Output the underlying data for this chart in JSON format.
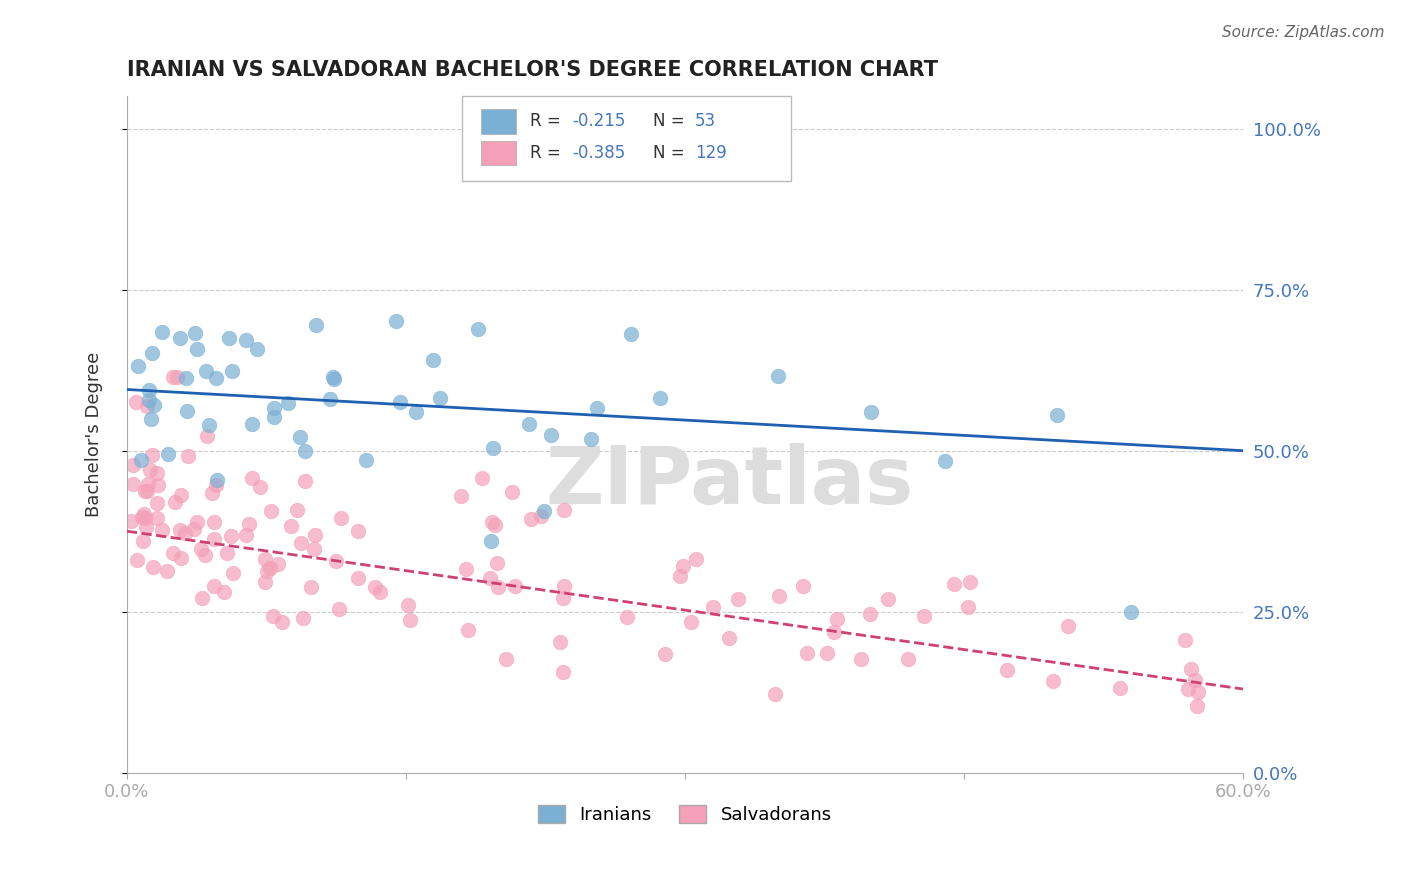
{
  "title": "IRANIAN VS SALVADORAN BACHELOR'S DEGREE CORRELATION CHART",
  "source": "Source: ZipAtlas.com",
  "ylabel_label": "Bachelor's Degree",
  "right_yticks": [
    0.0,
    0.25,
    0.5,
    0.75,
    1.0
  ],
  "right_ytick_labels": [
    "0.0%",
    "25.0%",
    "50.0%",
    "75.0%",
    "100.0%"
  ],
  "xlim": [
    0.0,
    0.6
  ],
  "ylim": [
    0.0,
    1.05
  ],
  "iranian_R": -0.215,
  "iranian_N": 53,
  "salvadoran_R": -0.385,
  "salvadoran_N": 129,
  "scatter_color_iranian": "#7ab0d4",
  "scatter_color_salvadoran": "#f4a0b8",
  "line_color_iranian": "#2060b0",
  "line_color_salvadoran": "#d04070",
  "background_color": "#ffffff",
  "title_color": "#222222",
  "axis_color": "#4477bb",
  "grid_color": "#cccccc",
  "watermark": "ZIPatlas",
  "watermark_color": "#dddddd",
  "iran_line_start": 0.595,
  "iran_line_end": 0.5,
  "salv_line_start": 0.375,
  "salv_line_end": 0.13
}
